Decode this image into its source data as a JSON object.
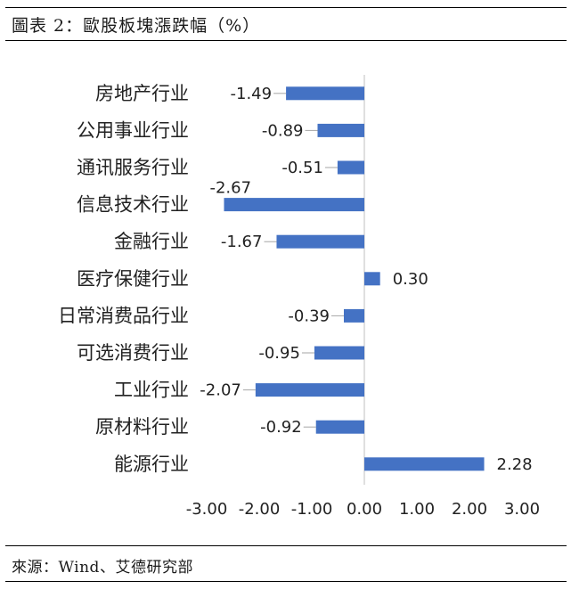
{
  "title": "圖表 2：歐股板塊漲跌幅（%）",
  "source": "來源：Wind、艾德研究部",
  "chart_data": {
    "type": "bar",
    "orientation": "horizontal",
    "categories": [
      "房地产行业",
      "公用事业行业",
      "通讯服务行业",
      "信息技术行业",
      "金融行业",
      "医疗保健行业",
      "日常消费品行业",
      "可选消费行业",
      "工业行业",
      "原材料行业",
      "能源行业"
    ],
    "values": [
      -1.49,
      -0.89,
      -0.51,
      -2.67,
      -1.67,
      0.3,
      -0.39,
      -0.95,
      -2.07,
      -0.92,
      2.28
    ],
    "value_labels": [
      "-1.49",
      "-0.89",
      "-0.51",
      "-2.67",
      "-1.67",
      "0.30",
      "-0.39",
      "-0.95",
      "-2.07",
      "-0.92",
      "2.28"
    ],
    "xlim": [
      -3.0,
      3.0
    ],
    "ticks": [
      "-3.00",
      "-2.00",
      "-1.00",
      "0.00",
      "1.00",
      "2.00",
      "3.00"
    ],
    "tick_values": [
      -3,
      -2,
      -1,
      0,
      1,
      2,
      3
    ],
    "bar_color": "#4472C4",
    "grid": false
  }
}
